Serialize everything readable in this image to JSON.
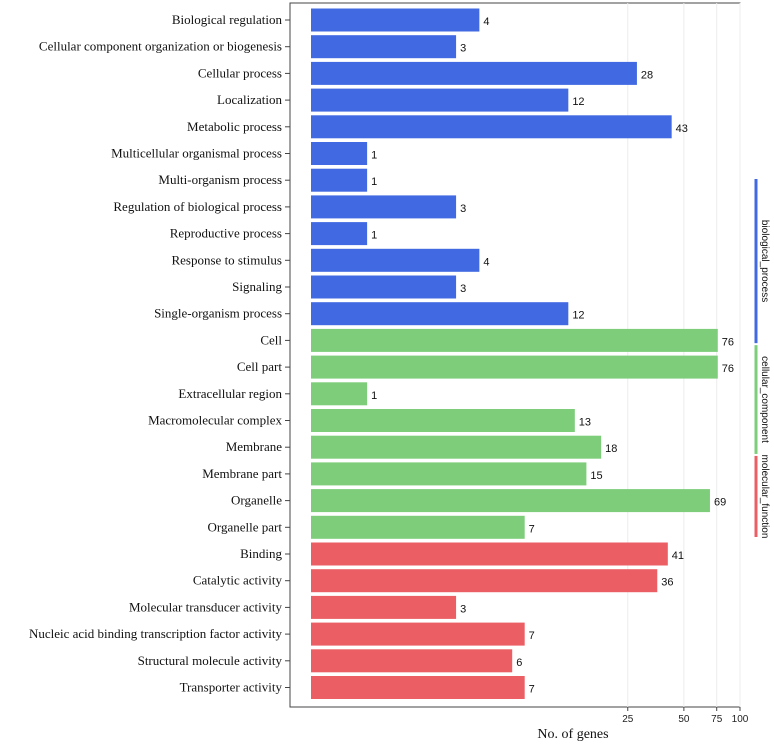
{
  "chart_data": {
    "type": "bar",
    "orientation": "horizontal",
    "xlabel": "No. of genes",
    "x_scale": "log",
    "x_ticks": [
      25,
      50,
      75,
      100
    ],
    "xlim": [
      0.5,
      100
    ],
    "grid": "vertical",
    "legend_placement": "right",
    "colors": {
      "biological_process": "#4169E1",
      "cellular_component": "#7DCD7A",
      "molecular_function": "#EB5E63"
    },
    "groups": [
      {
        "name": "biological_process",
        "color_key": "biological_process"
      },
      {
        "name": "cellular_component",
        "color_key": "cellular_component"
      },
      {
        "name": "molecular_function",
        "color_key": "molecular_function"
      }
    ],
    "categories": [
      {
        "label": "Biological regulation",
        "value": 4,
        "group": "biological_process"
      },
      {
        "label": "Cellular component organization or biogenesis",
        "value": 3,
        "group": "biological_process"
      },
      {
        "label": "Cellular process",
        "value": 28,
        "group": "biological_process"
      },
      {
        "label": "Localization",
        "value": 12,
        "group": "biological_process"
      },
      {
        "label": "Metabolic process",
        "value": 43,
        "group": "biological_process"
      },
      {
        "label": "Multicellular organismal process",
        "value": 1,
        "group": "biological_process"
      },
      {
        "label": "Multi-organism process",
        "value": 1,
        "group": "biological_process"
      },
      {
        "label": "Regulation of biological process",
        "value": 3,
        "group": "biological_process"
      },
      {
        "label": "Reproductive process",
        "value": 1,
        "group": "biological_process"
      },
      {
        "label": "Response to stimulus",
        "value": 4,
        "group": "biological_process"
      },
      {
        "label": "Signaling",
        "value": 3,
        "group": "biological_process"
      },
      {
        "label": "Single-organism process",
        "value": 12,
        "group": "biological_process"
      },
      {
        "label": "Cell",
        "value": 76,
        "group": "cellular_component"
      },
      {
        "label": "Cell part",
        "value": 76,
        "group": "cellular_component"
      },
      {
        "label": "Extracellular region",
        "value": 1,
        "group": "cellular_component"
      },
      {
        "label": "Macromolecular complex",
        "value": 13,
        "group": "cellular_component"
      },
      {
        "label": "Membrane",
        "value": 18,
        "group": "cellular_component"
      },
      {
        "label": "Membrane part",
        "value": 15,
        "group": "cellular_component"
      },
      {
        "label": "Organelle",
        "value": 69,
        "group": "cellular_component"
      },
      {
        "label": "Organelle part",
        "value": 7,
        "group": "cellular_component"
      },
      {
        "label": "Binding",
        "value": 41,
        "group": "molecular_function"
      },
      {
        "label": "Catalytic activity",
        "value": 36,
        "group": "molecular_function"
      },
      {
        "label": "Molecular transducer activity",
        "value": 3,
        "group": "molecular_function"
      },
      {
        "label": "Nucleic acid binding transcription factor activity",
        "value": 7,
        "group": "molecular_function"
      },
      {
        "label": "Structural molecule activity",
        "value": 6,
        "group": "molecular_function"
      },
      {
        "label": "Transporter activity",
        "value": 7,
        "group": "molecular_function"
      }
    ]
  }
}
